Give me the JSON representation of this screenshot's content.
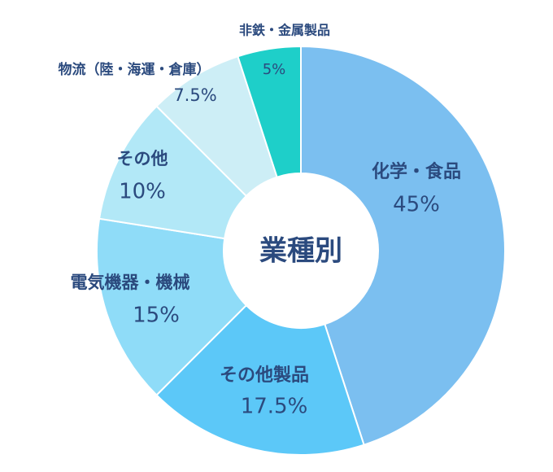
{
  "chart_data": {
    "type": "donut",
    "title": "業種別",
    "categories": [
      "化学・食品",
      "その他製品",
      "電気機器・機械",
      "その他",
      "物流（陸・海運・倉庫）",
      "非鉄・金属製品"
    ],
    "values": [
      45,
      17.5,
      15,
      10,
      7.5,
      5
    ],
    "value_labels": [
      "45%",
      "17.5%",
      "15%",
      "10%",
      "7.5%",
      "5%"
    ],
    "colors": [
      "#7bbff0",
      "#5cc8f8",
      "#8fdcf8",
      "#b2e8f7",
      "#cdeef6",
      "#1ecfc9"
    ]
  }
}
